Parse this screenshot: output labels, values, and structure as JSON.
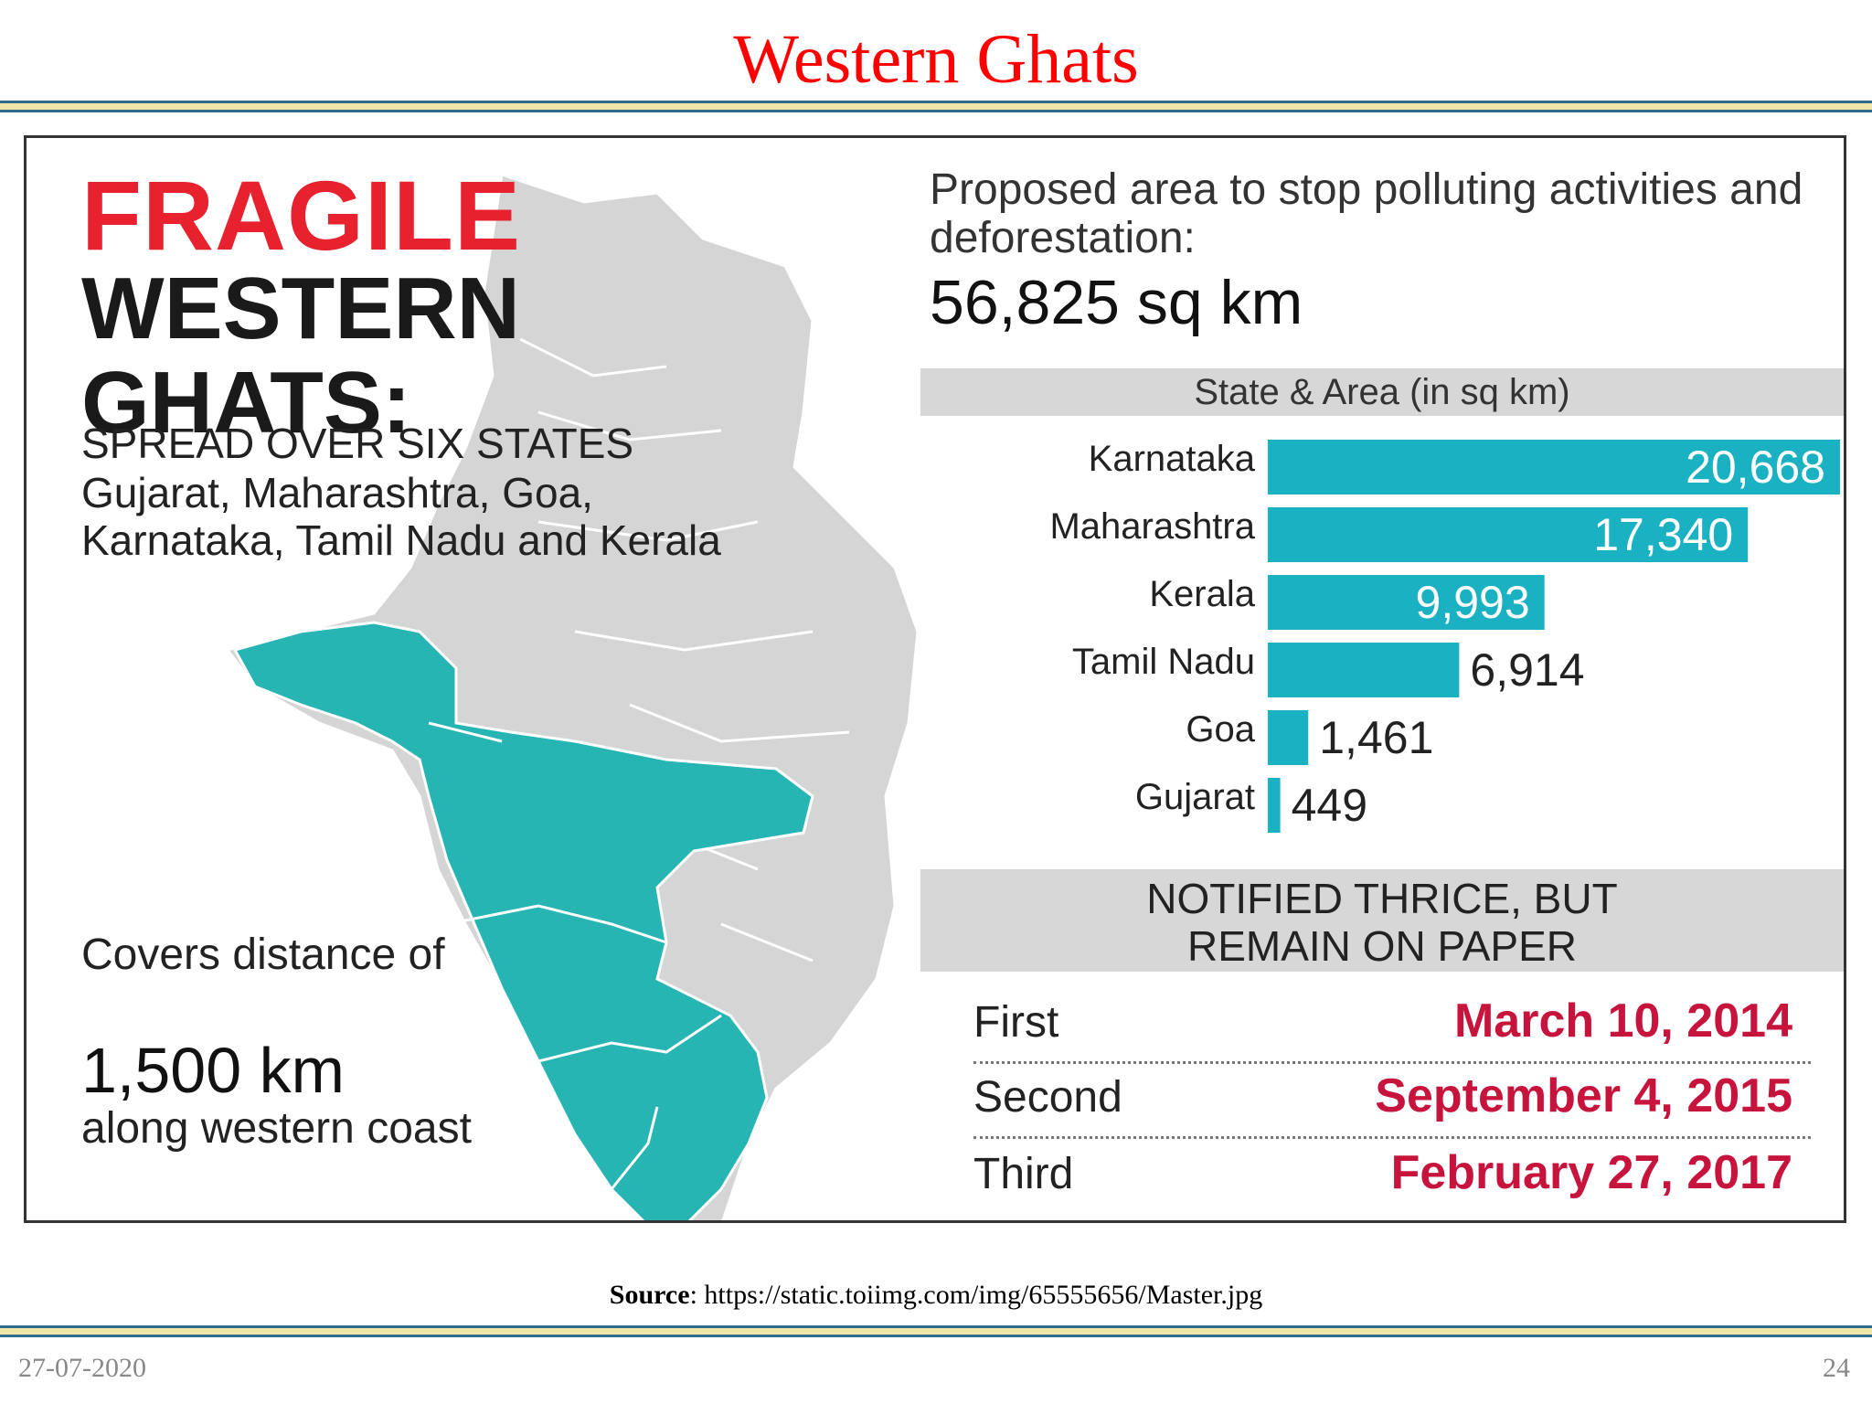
{
  "slide": {
    "title": "Western Ghats",
    "source_label": "Source",
    "source_url": "https://static.toiimg.com/img/65555656/Master.jpg",
    "date": "27-07-2020",
    "page_number": "24"
  },
  "infographic": {
    "heading_line1": "FRAGILE",
    "heading_line2": "WESTERN",
    "heading_line3": "GHATS:",
    "spread_title": "SPREAD OVER SIX STATES",
    "spread_states": "Gujarat, Maharashtra, Goa, Karnataka, Tamil Nadu and Kerala",
    "covers_intro": "Covers distance of",
    "covers_value": "1,500 km",
    "covers_tail": "along western coast",
    "proposed_text": "Proposed area to stop polluting activities and deforestation:",
    "proposed_value": "56,825 sq km",
    "notified_heading_line1": "NOTIFIED THRICE, BUT",
    "notified_heading_line2": "REMAIN ON PAPER",
    "notifications": [
      {
        "label": "First",
        "date": "March 10, 2014"
      },
      {
        "label": "Second",
        "date": "September 4, 2015"
      },
      {
        "label": "Third",
        "date": "February 27, 2017"
      }
    ]
  },
  "colors": {
    "title_red": "#ff0000",
    "heading_red": "#e8212e",
    "bar_teal": "#1ab2c2",
    "map_teal": "#27b5b3",
    "map_gray": "#d5d5d5",
    "date_red": "#c7143d"
  },
  "chart_data": {
    "type": "bar",
    "orientation": "horizontal",
    "title": "State & Area (in sq km)",
    "categories": [
      "Karnataka",
      "Maharashtra",
      "Kerala",
      "Tamil Nadu",
      "Goa",
      "Gujarat"
    ],
    "values": [
      20668,
      17340,
      9993,
      6914,
      1461,
      449
    ],
    "value_labels": [
      "20,668",
      "17,340",
      "9,993",
      "6,914",
      "1,461",
      "449"
    ],
    "grid": false,
    "legend": "none"
  }
}
